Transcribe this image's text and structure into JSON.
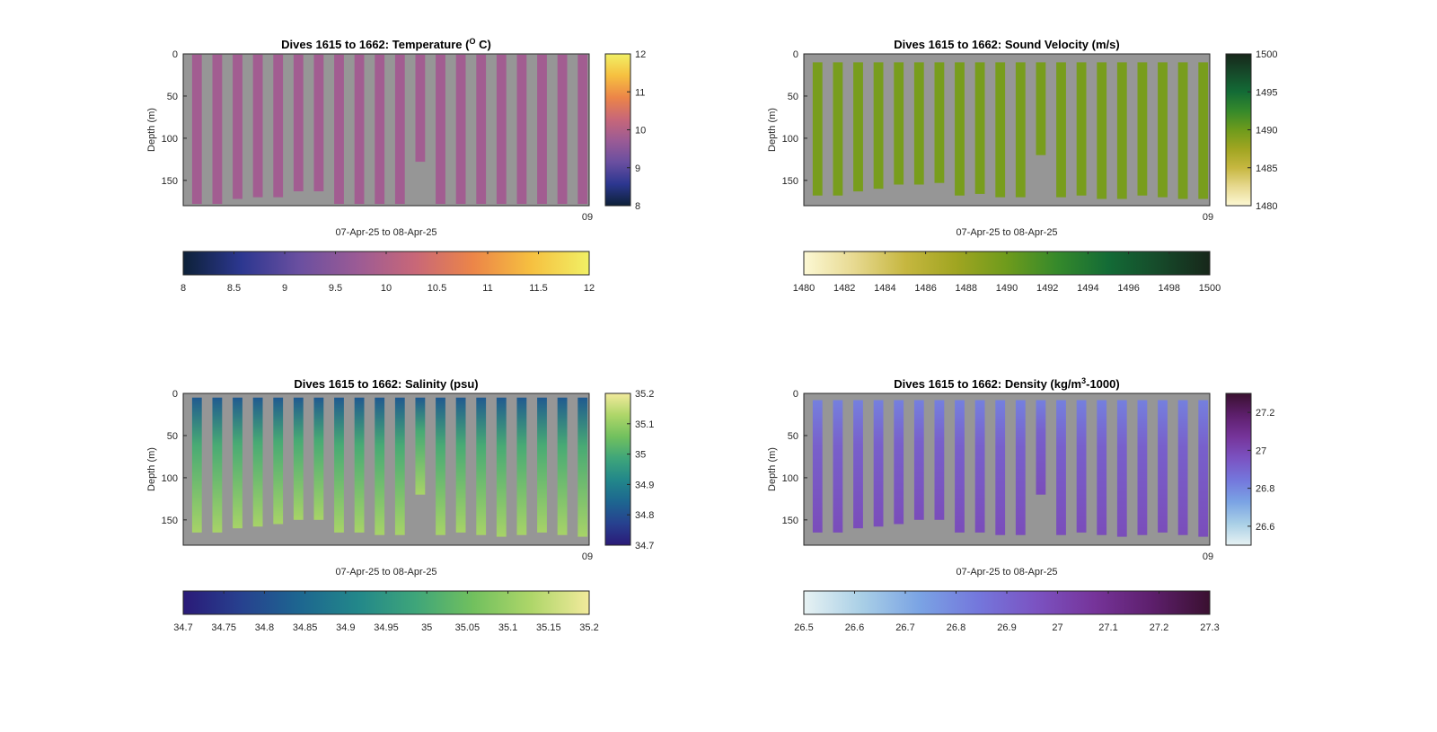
{
  "figure": {
    "background": "#ffffff",
    "plot_background": "#969696"
  },
  "chart_data": [
    {
      "type": "heatmap",
      "title": "Dives 1615 to 1662: Temperature (",
      "title_sup": "O",
      "title_tail": " C)",
      "xlabel": "07-Apr-25 to 08-Apr-25",
      "ylabel": "Depth (m)",
      "ylim": [
        0,
        180
      ],
      "y_reversed": true,
      "yticks": [
        "0",
        "50",
        "100",
        "150"
      ],
      "xtick_label": "09",
      "colormap": [
        "#0d2138",
        "#2c3790",
        "#6a4fa0",
        "#9b5b95",
        "#c86778",
        "#ec8548",
        "#f6c040",
        "#f1f065"
      ],
      "clim": [
        8,
        12
      ],
      "colorbar_right": {
        "ticks": [
          "8",
          "9",
          "10",
          "11",
          "12"
        ]
      },
      "colorbar_bottom": {
        "ticks": [
          "8",
          "8.5",
          "9",
          "9.5",
          "10",
          "10.5",
          "11",
          "11.5",
          "12"
        ]
      },
      "dives": [
        {
          "top": 1,
          "bottom": 178,
          "value": 9.8
        },
        {
          "top": 1,
          "bottom": 178,
          "value": 9.8
        },
        {
          "top": 1,
          "bottom": 172,
          "value": 9.8
        },
        {
          "top": 1,
          "bottom": 170,
          "value": 9.8
        },
        {
          "top": 1,
          "bottom": 170,
          "value": 9.8
        },
        {
          "top": 1,
          "bottom": 163,
          "value": 9.8
        },
        {
          "top": 1,
          "bottom": 163,
          "value": 9.8
        },
        {
          "top": 1,
          "bottom": 178,
          "value": 9.8
        },
        {
          "top": 1,
          "bottom": 178,
          "value": 9.8
        },
        {
          "top": 1,
          "bottom": 178,
          "value": 9.8
        },
        {
          "top": 1,
          "bottom": 178,
          "value": 9.8
        },
        {
          "top": 1,
          "bottom": 128,
          "value": 9.8
        },
        {
          "top": 1,
          "bottom": 178,
          "value": 9.8
        },
        {
          "top": 1,
          "bottom": 178,
          "value": 9.8
        },
        {
          "top": 1,
          "bottom": 178,
          "value": 9.8
        },
        {
          "top": 1,
          "bottom": 178,
          "value": 9.8
        },
        {
          "top": 1,
          "bottom": 178,
          "value": 9.8
        },
        {
          "top": 1,
          "bottom": 178,
          "value": 9.8
        },
        {
          "top": 1,
          "bottom": 178,
          "value": 9.8
        },
        {
          "top": 1,
          "bottom": 178,
          "value": 9.8
        }
      ]
    },
    {
      "type": "heatmap",
      "title": "Dives 1615 to 1662: Sound Velocity (m/s)",
      "xlabel": "07-Apr-25 to 08-Apr-25",
      "ylabel": "Depth (m)",
      "ylim": [
        0,
        180
      ],
      "y_reversed": true,
      "yticks": [
        "0",
        "50",
        "100",
        "150"
      ],
      "xtick_label": "09",
      "colormap": [
        "#fcf8d4",
        "#e7d990",
        "#c6b740",
        "#a0a521",
        "#6e9b1c",
        "#35892b",
        "#136b36",
        "#164a2a",
        "#17271a"
      ],
      "clim": [
        1480,
        1500
      ],
      "colorbar_right": {
        "ticks": [
          "1480",
          "1485",
          "1490",
          "1495",
          "1500"
        ]
      },
      "colorbar_bottom": {
        "ticks": [
          "1480",
          "1482",
          "1484",
          "1486",
          "1488",
          "1490",
          "1492",
          "1494",
          "1496",
          "1498",
          "1500"
        ]
      },
      "dives": [
        {
          "top": 10,
          "bottom": 168,
          "value": 1489.5
        },
        {
          "top": 10,
          "bottom": 168,
          "value": 1489.5
        },
        {
          "top": 10,
          "bottom": 163,
          "value": 1489.5
        },
        {
          "top": 10,
          "bottom": 160,
          "value": 1489.5
        },
        {
          "top": 10,
          "bottom": 155,
          "value": 1489.5
        },
        {
          "top": 10,
          "bottom": 155,
          "value": 1489.5
        },
        {
          "top": 10,
          "bottom": 153,
          "value": 1489.5
        },
        {
          "top": 10,
          "bottom": 168,
          "value": 1489.5
        },
        {
          "top": 10,
          "bottom": 166,
          "value": 1489.5
        },
        {
          "top": 10,
          "bottom": 170,
          "value": 1489.5
        },
        {
          "top": 10,
          "bottom": 170,
          "value": 1489.5
        },
        {
          "top": 10,
          "bottom": 120,
          "value": 1489.5
        },
        {
          "top": 10,
          "bottom": 170,
          "value": 1489.5
        },
        {
          "top": 10,
          "bottom": 168,
          "value": 1489.5
        },
        {
          "top": 10,
          "bottom": 172,
          "value": 1489.5
        },
        {
          "top": 10,
          "bottom": 172,
          "value": 1489.5
        },
        {
          "top": 10,
          "bottom": 168,
          "value": 1489.5
        },
        {
          "top": 10,
          "bottom": 170,
          "value": 1489.5
        },
        {
          "top": 10,
          "bottom": 172,
          "value": 1489.5
        },
        {
          "top": 10,
          "bottom": 172,
          "value": 1489.5
        }
      ]
    },
    {
      "type": "heatmap",
      "title": "Dives 1615 to 1662: Salinity (psu)",
      "xlabel": "07-Apr-25 to 08-Apr-25",
      "ylabel": "Depth (m)",
      "ylim": [
        0,
        180
      ],
      "y_reversed": true,
      "yticks": [
        "0",
        "50",
        "100",
        "150"
      ],
      "xtick_label": "09",
      "colormap": [
        "#2a1a78",
        "#27418f",
        "#1d6690",
        "#22878a",
        "#3ea57a",
        "#71c05e",
        "#aed669",
        "#f2ea9c"
      ],
      "clim": [
        34.7,
        35.2
      ],
      "colorbar_right": {
        "ticks": [
          "34.7",
          "34.8",
          "34.9",
          "35",
          "35.1",
          "35.2"
        ]
      },
      "colorbar_bottom": {
        "ticks": [
          "34.7",
          "34.75",
          "34.8",
          "34.85",
          "34.9",
          "34.95",
          "35",
          "35.05",
          "35.1",
          "35.15",
          "35.2"
        ]
      },
      "dives": [
        {
          "top": 5,
          "bottom": 165,
          "surface": 34.82,
          "deep": 35.12
        },
        {
          "top": 5,
          "bottom": 165,
          "surface": 34.82,
          "deep": 35.12
        },
        {
          "top": 5,
          "bottom": 160,
          "surface": 34.82,
          "deep": 35.12
        },
        {
          "top": 5,
          "bottom": 158,
          "surface": 34.82,
          "deep": 35.12
        },
        {
          "top": 5,
          "bottom": 155,
          "surface": 34.82,
          "deep": 35.12
        },
        {
          "top": 5,
          "bottom": 150,
          "surface": 34.82,
          "deep": 35.12
        },
        {
          "top": 5,
          "bottom": 150,
          "surface": 34.82,
          "deep": 35.12
        },
        {
          "top": 5,
          "bottom": 165,
          "surface": 34.82,
          "deep": 35.12
        },
        {
          "top": 5,
          "bottom": 165,
          "surface": 34.82,
          "deep": 35.12
        },
        {
          "top": 5,
          "bottom": 168,
          "surface": 34.82,
          "deep": 35.12
        },
        {
          "top": 5,
          "bottom": 168,
          "surface": 34.82,
          "deep": 35.12
        },
        {
          "top": 5,
          "bottom": 120,
          "surface": 34.82,
          "deep": 35.12
        },
        {
          "top": 5,
          "bottom": 168,
          "surface": 34.82,
          "deep": 35.12
        },
        {
          "top": 5,
          "bottom": 165,
          "surface": 34.82,
          "deep": 35.12
        },
        {
          "top": 5,
          "bottom": 168,
          "surface": 34.82,
          "deep": 35.12
        },
        {
          "top": 5,
          "bottom": 170,
          "surface": 34.82,
          "deep": 35.12
        },
        {
          "top": 5,
          "bottom": 168,
          "surface": 34.82,
          "deep": 35.12
        },
        {
          "top": 5,
          "bottom": 165,
          "surface": 34.82,
          "deep": 35.12
        },
        {
          "top": 5,
          "bottom": 168,
          "surface": 34.82,
          "deep": 35.12
        },
        {
          "top": 5,
          "bottom": 170,
          "surface": 34.82,
          "deep": 35.12
        }
      ]
    },
    {
      "type": "heatmap",
      "title": "Dives 1615 to 1662: Density (kg/m",
      "title_sup": "3",
      "title_tail": "-1000)",
      "xlabel": "07-Apr-25 to 08-Apr-25",
      "ylabel": "Depth (m)",
      "ylim": [
        0,
        180
      ],
      "y_reversed": true,
      "yticks": [
        "0",
        "50",
        "100",
        "150"
      ],
      "xtick_label": "09",
      "colormap": [
        "#e7f2f3",
        "#a9cfe6",
        "#7aa3e4",
        "#7477dc",
        "#7b53c2",
        "#76349a",
        "#5d1f6c",
        "#3a1030"
      ],
      "clim": [
        26.5,
        27.3
      ],
      "colorbar_right": {
        "ticks": [
          "26.6",
          "26.8",
          "27",
          "27.2"
        ]
      },
      "colorbar_bottom": {
        "ticks": [
          "26.5",
          "26.6",
          "26.7",
          "26.8",
          "26.9",
          "27",
          "27.1",
          "27.2",
          "27.3"
        ]
      },
      "dives": [
        {
          "top": 8,
          "bottom": 165,
          "surface": 26.82,
          "deep": 26.98
        },
        {
          "top": 8,
          "bottom": 165,
          "surface": 26.82,
          "deep": 26.98
        },
        {
          "top": 8,
          "bottom": 160,
          "surface": 26.82,
          "deep": 26.98
        },
        {
          "top": 8,
          "bottom": 158,
          "surface": 26.82,
          "deep": 26.98
        },
        {
          "top": 8,
          "bottom": 155,
          "surface": 26.82,
          "deep": 26.98
        },
        {
          "top": 8,
          "bottom": 150,
          "surface": 26.82,
          "deep": 26.98
        },
        {
          "top": 8,
          "bottom": 150,
          "surface": 26.82,
          "deep": 26.98
        },
        {
          "top": 8,
          "bottom": 165,
          "surface": 26.82,
          "deep": 26.98
        },
        {
          "top": 8,
          "bottom": 165,
          "surface": 26.82,
          "deep": 26.98
        },
        {
          "top": 8,
          "bottom": 168,
          "surface": 26.82,
          "deep": 26.98
        },
        {
          "top": 8,
          "bottom": 168,
          "surface": 26.82,
          "deep": 26.98
        },
        {
          "top": 8,
          "bottom": 120,
          "surface": 26.82,
          "deep": 26.98
        },
        {
          "top": 8,
          "bottom": 168,
          "surface": 26.82,
          "deep": 26.98
        },
        {
          "top": 8,
          "bottom": 165,
          "surface": 26.82,
          "deep": 26.98
        },
        {
          "top": 8,
          "bottom": 168,
          "surface": 26.82,
          "deep": 26.98
        },
        {
          "top": 8,
          "bottom": 170,
          "surface": 26.82,
          "deep": 26.98
        },
        {
          "top": 8,
          "bottom": 168,
          "surface": 26.82,
          "deep": 26.98
        },
        {
          "top": 8,
          "bottom": 165,
          "surface": 26.82,
          "deep": 26.98
        },
        {
          "top": 8,
          "bottom": 168,
          "surface": 26.82,
          "deep": 26.98
        },
        {
          "top": 8,
          "bottom": 170,
          "surface": 26.82,
          "deep": 26.98
        }
      ]
    }
  ]
}
